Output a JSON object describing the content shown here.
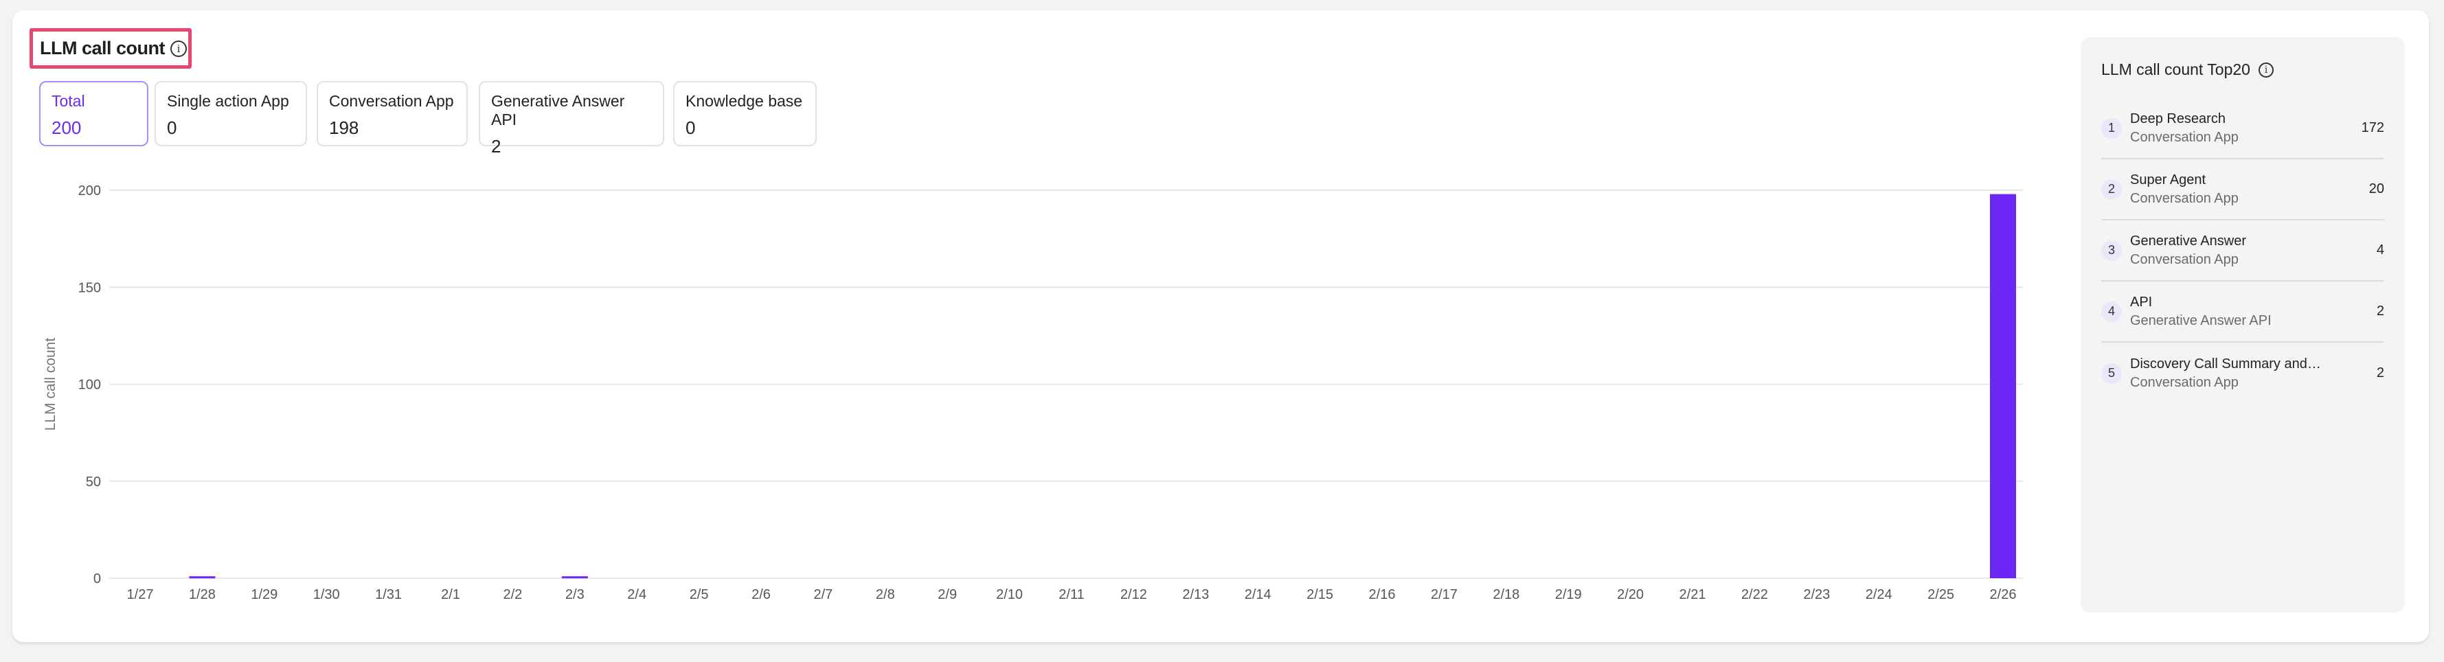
{
  "header": {
    "title": "LLM call count",
    "info_icon": "info-circle-icon"
  },
  "stats": [
    {
      "label": "Total",
      "value": "200",
      "active": true
    },
    {
      "label": "Single action App",
      "value": "0"
    },
    {
      "label": "Conversation App",
      "value": "198"
    },
    {
      "label": "Generative Answer API",
      "value": "2"
    },
    {
      "label": "Knowledge base",
      "value": "0"
    }
  ],
  "colors": {
    "accent": "#6d28f5",
    "highlight_border": "#e8466e"
  },
  "chart_data": {
    "type": "bar",
    "ylabel": "LLM call count",
    "ylim": [
      0,
      200
    ],
    "yticks": [
      "0",
      "50",
      "100",
      "150",
      "200"
    ],
    "grid": true,
    "categories": [
      "1/27",
      "1/28",
      "1/29",
      "1/30",
      "1/31",
      "2/1",
      "2/2",
      "2/3",
      "2/4",
      "2/5",
      "2/6",
      "2/7",
      "2/8",
      "2/9",
      "2/10",
      "2/11",
      "2/12",
      "2/13",
      "2/14",
      "2/15",
      "2/16",
      "2/17",
      "2/18",
      "2/19",
      "2/20",
      "2/21",
      "2/22",
      "2/23",
      "2/24",
      "2/25",
      "2/26"
    ],
    "values": [
      0,
      1,
      0,
      0,
      0,
      0,
      0,
      1,
      0,
      0,
      0,
      0,
      0,
      0,
      0,
      0,
      0,
      0,
      0,
      0,
      0,
      0,
      0,
      0,
      0,
      0,
      0,
      0,
      0,
      0,
      198
    ]
  },
  "top20": {
    "title": "LLM call count Top20",
    "items": [
      {
        "rank": "1",
        "name": "Deep Research",
        "type": "Conversation App",
        "count": "172"
      },
      {
        "rank": "2",
        "name": "Super Agent",
        "type": "Conversation App",
        "count": "20"
      },
      {
        "rank": "3",
        "name": "Generative Answer",
        "type": "Conversation App",
        "count": "4"
      },
      {
        "rank": "4",
        "name": "API",
        "type": "Generative Answer API",
        "count": "2"
      },
      {
        "rank": "5",
        "name": "Discovery Call Summary and…",
        "type": "Conversation App",
        "count": "2"
      }
    ]
  }
}
